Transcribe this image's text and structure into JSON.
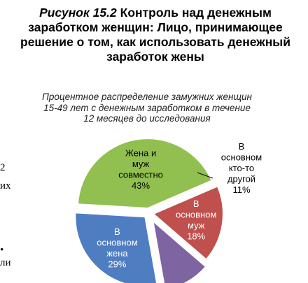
{
  "figure": {
    "number": "Рисунок 15.2",
    "title": "Контроль над денежным заработком женщин: Лицо, принимающее решение о том, как использовать денежный заработок жены"
  },
  "left_edge_fragments": [
    "2",
    "их",
    "•",
    "ли"
  ],
  "chart_data": {
    "type": "pie",
    "subtitle": "Процентное распределение замужних женщин 15-49 лет с денежным заработком в течение 12 месяцев до исследования",
    "slices": [
      {
        "label_lines": [
          "В",
          "основном",
          "жена"
        ],
        "value": 29,
        "value_label": "29%",
        "color": "#4f7dc2",
        "label_color": "#ffffff"
      },
      {
        "label_lines": [
          "Жена и",
          "муж",
          "совместно"
        ],
        "value": 43,
        "value_label": "43%",
        "color": "#92c050",
        "label_color": "#000000"
      },
      {
        "label_lines": [
          "В",
          "основном",
          "муж"
        ],
        "value": 18,
        "value_label": "18%",
        "color": "#c0504d",
        "label_color": "#ffffff"
      },
      {
        "label_lines": [
          "В",
          "основном",
          "кто-то",
          "другой"
        ],
        "value": 11,
        "value_label": "11%",
        "color": "#7f64a2",
        "label_color": "#000000"
      }
    ]
  }
}
